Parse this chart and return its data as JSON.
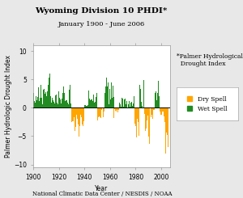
{
  "title": "Wyoming Division 10 PHDI*",
  "subtitle": "January 1900 - June 2006",
  "xlabel": "Year",
  "ylabel": "Palmer Hydrologic Drought Index",
  "footnote": "National Climatic Data Center / NESDIS / NOAA",
  "annotation": "*Palmer Hydrological\n  Drought Index",
  "ylim": [
    -10.5,
    11.0
  ],
  "xlim": [
    1899.5,
    2007
  ],
  "xticks": [
    1900,
    1920,
    1940,
    1960,
    1980,
    2000
  ],
  "yticks": [
    -10.0,
    -5.0,
    0.0,
    5.0,
    10.0
  ],
  "dry_color": "#FFA500",
  "wet_color": "#228B22",
  "background_color": "#e8e8e8",
  "plot_bg_color": "#ffffff",
  "legend_dry": "Dry Spell",
  "legend_wet": "Wet Spell",
  "title_fontsize": 7.5,
  "subtitle_fontsize": 6,
  "axis_label_fontsize": 5.5,
  "tick_fontsize": 5.5,
  "legend_fontsize": 5.5,
  "annotation_fontsize": 5.5
}
